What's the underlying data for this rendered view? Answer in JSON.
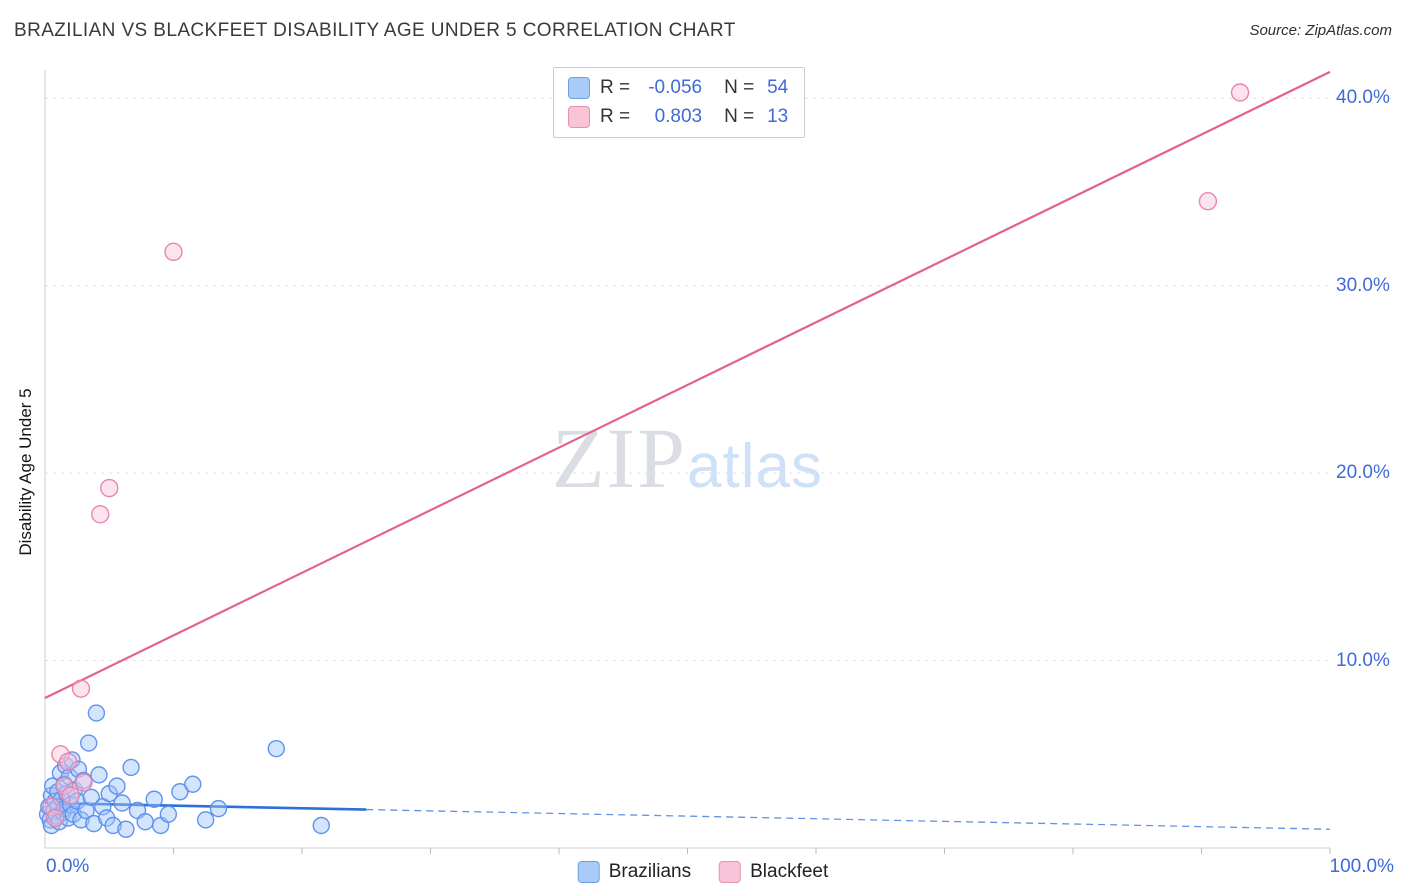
{
  "header": {
    "title": "BRAZILIAN VS BLACKFEET DISABILITY AGE UNDER 5 CORRELATION CHART",
    "source": "Source: ZipAtlas.com"
  },
  "watermark": {
    "zip": "ZIP",
    "atlas": "atlas"
  },
  "stats_legend": {
    "rows": [
      {
        "r_label": "R =",
        "r_value": "-0.056",
        "n_label": "N =",
        "n_value": "54",
        "swatch_fill": "#a9cbf8",
        "swatch_stroke": "#6f9fe0"
      },
      {
        "r_label": "R =",
        "r_value": "0.803",
        "n_label": "N =",
        "n_value": "13",
        "swatch_fill": "#f9c4d8",
        "swatch_stroke": "#e890b2"
      }
    ]
  },
  "bottom_legend": {
    "items": [
      {
        "label": "Brazilians",
        "fill": "#a9cbf8",
        "stroke": "#6f9fe0"
      },
      {
        "label": "Blackfeet",
        "fill": "#f9c4d8",
        "stroke": "#e890b2"
      }
    ]
  },
  "chart_data": {
    "type": "scatter",
    "title": "BRAZILIAN VS BLACKFEET DISABILITY AGE UNDER 5 CORRELATION CHART",
    "xlabel": "",
    "ylabel": "Disability Age Under 5",
    "xlim": [
      0,
      100
    ],
    "ylim": [
      0,
      41.5
    ],
    "grid": true,
    "legend_position": "bottom",
    "x_axis": {
      "min_label": "0.0%",
      "max_label": "100.0%",
      "tick_step": 10
    },
    "y_axis": {
      "ticks": [
        {
          "value": 10,
          "label": "10.0%"
        },
        {
          "value": 20,
          "label": "20.0%"
        },
        {
          "value": 30,
          "label": "30.0%"
        },
        {
          "value": 40,
          "label": "40.0%"
        }
      ]
    },
    "series": [
      {
        "name": "Brazilians",
        "R": -0.056,
        "N": 54,
        "point_fill": "#9ec5f8",
        "point_stroke": "#5b8def",
        "point_radius": 8,
        "line_color": "#2e6fd8",
        "trend": {
          "x1": 0,
          "y1": 2.4,
          "x2": 100,
          "y2": 1.0,
          "solid_to": 25
        },
        "points": [
          [
            0.2,
            1.8
          ],
          [
            0.3,
            2.2
          ],
          [
            0.4,
            1.5
          ],
          [
            0.5,
            2.8
          ],
          [
            0.5,
            1.2
          ],
          [
            0.6,
            3.3
          ],
          [
            0.7,
            2.0
          ],
          [
            0.8,
            2.5
          ],
          [
            0.9,
            1.7
          ],
          [
            1.0,
            3.0
          ],
          [
            1.0,
            2.2
          ],
          [
            1.1,
            1.4
          ],
          [
            1.2,
            4.0
          ],
          [
            1.3,
            2.6
          ],
          [
            1.4,
            1.9
          ],
          [
            1.5,
            3.4
          ],
          [
            1.5,
            2.1
          ],
          [
            1.6,
            4.4
          ],
          [
            1.7,
            2.9
          ],
          [
            1.8,
            1.6
          ],
          [
            1.9,
            3.8
          ],
          [
            2.0,
            2.3
          ],
          [
            2.1,
            4.7
          ],
          [
            2.2,
            1.8
          ],
          [
            2.3,
            3.1
          ],
          [
            2.5,
            2.5
          ],
          [
            2.6,
            4.2
          ],
          [
            2.8,
            1.5
          ],
          [
            3.0,
            3.6
          ],
          [
            3.2,
            2.0
          ],
          [
            3.4,
            5.6
          ],
          [
            3.6,
            2.7
          ],
          [
            3.8,
            1.3
          ],
          [
            4.0,
            7.2
          ],
          [
            4.2,
            3.9
          ],
          [
            4.5,
            2.2
          ],
          [
            4.8,
            1.6
          ],
          [
            5.0,
            2.9
          ],
          [
            5.3,
            1.2
          ],
          [
            5.6,
            3.3
          ],
          [
            6.0,
            2.4
          ],
          [
            6.3,
            1.0
          ],
          [
            6.7,
            4.3
          ],
          [
            7.2,
            2.0
          ],
          [
            7.8,
            1.4
          ],
          [
            8.5,
            2.6
          ],
          [
            9.0,
            1.2
          ],
          [
            9.6,
            1.8
          ],
          [
            10.5,
            3.0
          ],
          [
            11.5,
            3.4
          ],
          [
            12.5,
            1.5
          ],
          [
            13.5,
            2.1
          ],
          [
            18.0,
            5.3
          ],
          [
            21.5,
            1.2
          ]
        ]
      },
      {
        "name": "Blackfeet",
        "R": 0.803,
        "N": 13,
        "point_fill": "#f8c3d9",
        "point_stroke": "#e87fab",
        "point_radius": 8.5,
        "line_color": "#e4618f",
        "trend": {
          "x1": 0,
          "y1": 8.0,
          "x2": 100,
          "y2": 41.4,
          "solid_to": 100
        },
        "points": [
          [
            0.5,
            2.2
          ],
          [
            0.8,
            1.6
          ],
          [
            1.2,
            5.0
          ],
          [
            1.5,
            3.3
          ],
          [
            1.8,
            4.6
          ],
          [
            2.0,
            2.8
          ],
          [
            3.0,
            3.5
          ],
          [
            2.8,
            8.5
          ],
          [
            4.3,
            17.8
          ],
          [
            5.0,
            19.2
          ],
          [
            10.0,
            31.8
          ],
          [
            90.5,
            34.5
          ],
          [
            93.0,
            40.3
          ]
        ]
      }
    ]
  }
}
